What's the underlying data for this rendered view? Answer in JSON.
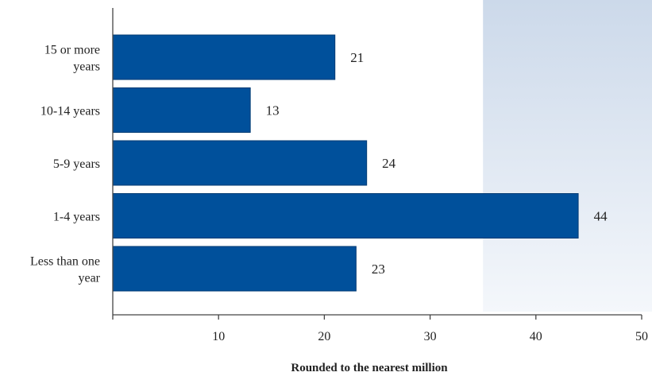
{
  "chart_data": {
    "type": "bar",
    "orientation": "horizontal",
    "categories": [
      [
        "15 or more",
        "years"
      ],
      [
        "10-14 years"
      ],
      [
        "5-9 years"
      ],
      [
        "1-4 years"
      ],
      [
        "Less than one",
        "year"
      ]
    ],
    "values": [
      21,
      13,
      24,
      44,
      23
    ],
    "value_labels": [
      "21",
      "13",
      "24",
      "44",
      "23"
    ],
    "xlabel": "Rounded to the nearest million",
    "xlim": [
      0,
      50
    ],
    "xticks": [
      10,
      20,
      30,
      40,
      50
    ],
    "grid": false,
    "colors": {
      "bar": "#00509b",
      "bar_border": "#003a73",
      "axis": "#444444",
      "shade_top": "#ccd9ea",
      "shade_bottom": "#f4f7fb"
    },
    "shaded_region_x": [
      35,
      50
    ]
  }
}
